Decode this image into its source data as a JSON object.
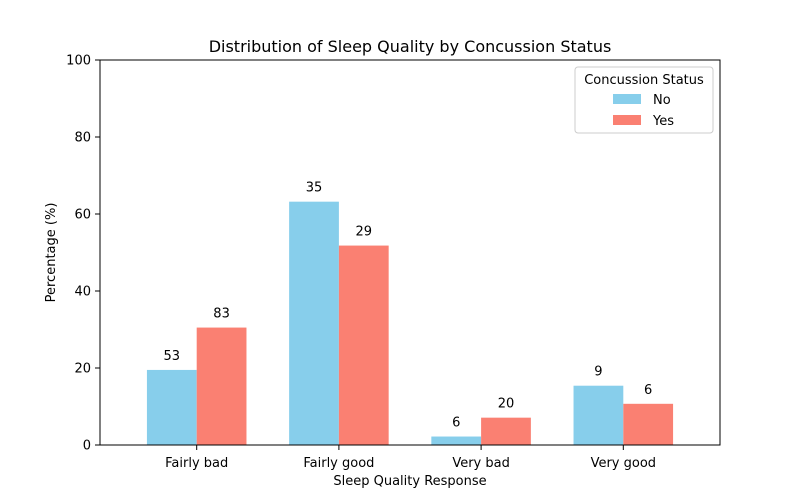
{
  "chart_data": {
    "type": "bar",
    "title": "Distribution of Sleep Quality by Concussion Status",
    "xlabel": "Sleep Quality Response",
    "ylabel": "Percentage (%)",
    "ylim": [
      0,
      100
    ],
    "yticks": [
      "0",
      "20",
      "40",
      "60",
      "80",
      "100"
    ],
    "categories": [
      "Fairly bad",
      "Fairly good",
      "Very bad",
      "Very good"
    ],
    "series": [
      {
        "name": "No",
        "color": "#87CEEB",
        "values": [
          19.5,
          63.2,
          2.2,
          15.4
        ],
        "labels": [
          "53",
          "35",
          "6",
          "9"
        ]
      },
      {
        "name": "Yes",
        "color": "#FA8072",
        "values": [
          30.5,
          51.8,
          7.1,
          10.7
        ],
        "labels": [
          "83",
          "29",
          "20",
          "6"
        ]
      }
    ],
    "legend": {
      "title": "Concussion Status",
      "placement": "top-right"
    },
    "grid": false
  }
}
